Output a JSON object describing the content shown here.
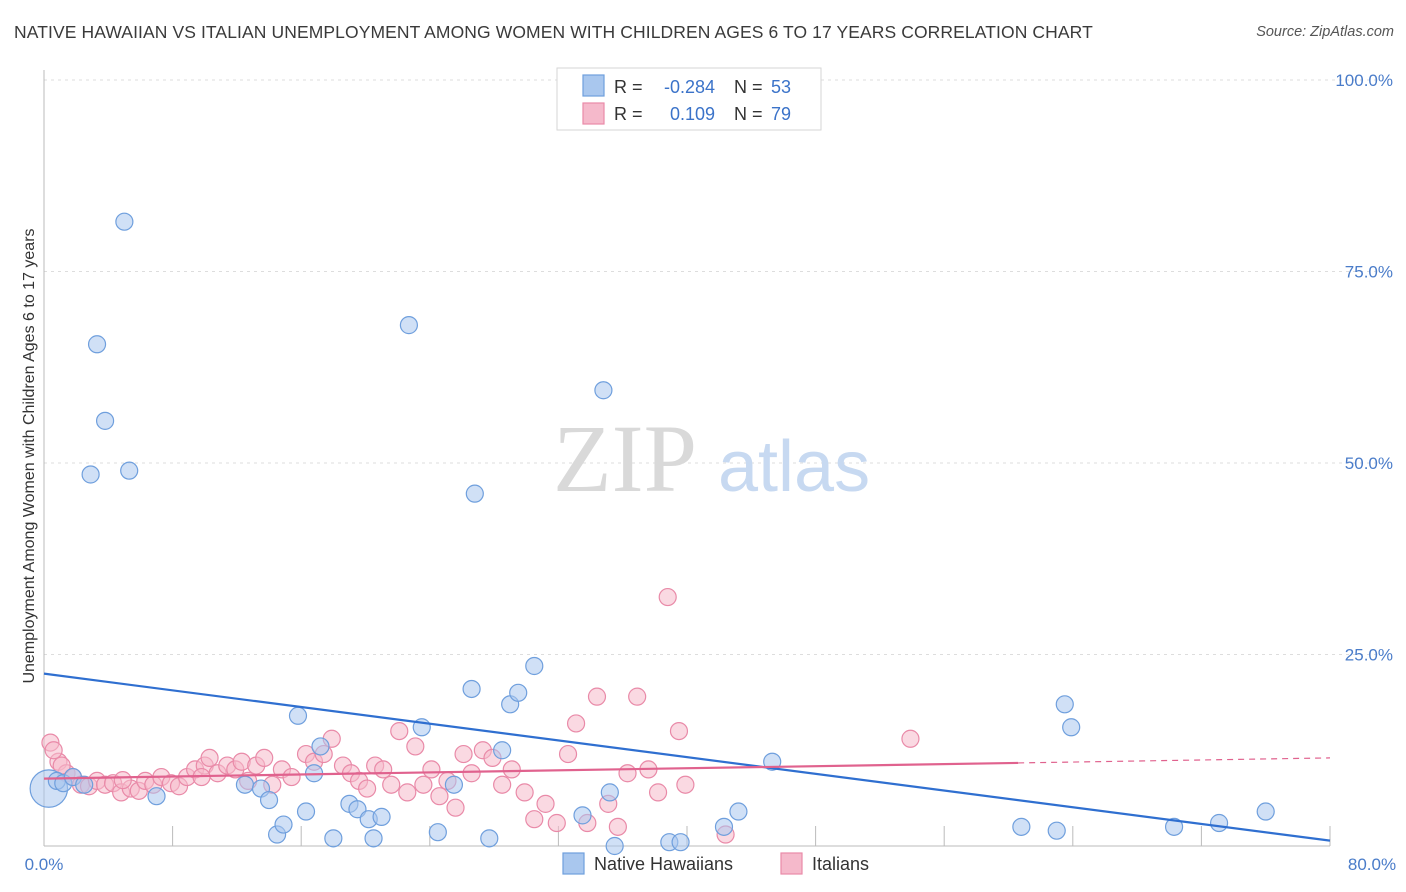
{
  "header": {
    "title": "NATIVE HAWAIIAN VS ITALIAN UNEMPLOYMENT AMONG WOMEN WITH CHILDREN AGES 6 TO 17 YEARS CORRELATION CHART",
    "source": "Source: ZipAtlas.com"
  },
  "watermark": {
    "zip": "ZIP",
    "atlas": "atlas"
  },
  "colors": {
    "blue_fill": "#a9c7ee",
    "blue_stroke": "#6f9fdd",
    "blue_line": "#2f6fd0",
    "pink_fill": "#f5b9cb",
    "pink_stroke": "#e98aa8",
    "pink_line": "#e0628e",
    "grid": "#dddddd",
    "tick_text": "#4a7cc9"
  },
  "legend": {
    "rows": [
      {
        "r_label": "R =",
        "r_value": "-0.284",
        "n_label": "N =",
        "n_value": "53"
      },
      {
        "r_label": "R =",
        "r_value": "0.109",
        "n_label": "N =",
        "n_value": "79"
      }
    ]
  },
  "chart_data": {
    "type": "scatter",
    "title": "NATIVE HAWAIIAN VS ITALIAN UNEMPLOYMENT AMONG WOMEN WITH CHILDREN AGES 6 TO 17 YEARS CORRELATION CHART",
    "xlabel": "",
    "ylabel": "Unemployment Among Women with Children Ages 6 to 17 years",
    "xlim": [
      0,
      80
    ],
    "ylim": [
      0,
      100
    ],
    "x_tick_labels": [
      "0.0%",
      "80.0%"
    ],
    "y_ticks": [
      25,
      50,
      75,
      100
    ],
    "y_tick_labels": [
      "25.0%",
      "50.0%",
      "75.0%",
      "100.0%"
    ],
    "legend_position": "bottom",
    "series": [
      {
        "name": "Native Hawaiians",
        "r": -0.284,
        "n": 53,
        "trend": {
          "x": [
            0,
            80
          ],
          "y": [
            22.5,
            0.7
          ],
          "dashed_from": null
        },
        "points": [
          {
            "x": 0.3,
            "y": 7.5,
            "size": 2.2
          },
          {
            "x": 0.8,
            "y": 8.5
          },
          {
            "x": 1.2,
            "y": 8.2
          },
          {
            "x": 1.8,
            "y": 9.0
          },
          {
            "x": 2.5,
            "y": 8.0
          },
          {
            "x": 2.9,
            "y": 48.5
          },
          {
            "x": 3.3,
            "y": 65.5
          },
          {
            "x": 3.8,
            "y": 55.5
          },
          {
            "x": 5.0,
            "y": 81.5
          },
          {
            "x": 5.3,
            "y": 49.0
          },
          {
            "x": 7.0,
            "y": 6.5
          },
          {
            "x": 12.5,
            "y": 8.0
          },
          {
            "x": 13.5,
            "y": 7.5
          },
          {
            "x": 14.0,
            "y": 6.0
          },
          {
            "x": 14.5,
            "y": 1.5
          },
          {
            "x": 14.9,
            "y": 2.8
          },
          {
            "x": 15.8,
            "y": 17.0
          },
          {
            "x": 16.3,
            "y": 4.5
          },
          {
            "x": 16.8,
            "y": 9.5
          },
          {
            "x": 17.2,
            "y": 13.0
          },
          {
            "x": 18.0,
            "y": 1.0
          },
          {
            "x": 19.0,
            "y": 5.5
          },
          {
            "x": 19.5,
            "y": 4.8
          },
          {
            "x": 20.2,
            "y": 3.5
          },
          {
            "x": 20.5,
            "y": 1.0
          },
          {
            "x": 21.0,
            "y": 3.8
          },
          {
            "x": 22.7,
            "y": 68.0
          },
          {
            "x": 23.5,
            "y": 15.5
          },
          {
            "x": 24.5,
            "y": 1.8
          },
          {
            "x": 25.5,
            "y": 8.0
          },
          {
            "x": 26.8,
            "y": 46.0
          },
          {
            "x": 27.7,
            "y": 1.0
          },
          {
            "x": 28.5,
            "y": 12.5
          },
          {
            "x": 29.0,
            "y": 18.5
          },
          {
            "x": 29.5,
            "y": 20.0
          },
          {
            "x": 30.5,
            "y": 23.5
          },
          {
            "x": 26.6,
            "y": 20.5
          },
          {
            "x": 33.5,
            "y": 4.0
          },
          {
            "x": 34.8,
            "y": 59.5
          },
          {
            "x": 35.2,
            "y": 7.0
          },
          {
            "x": 35.5,
            "y": 0.0
          },
          {
            "x": 38.9,
            "y": 0.5
          },
          {
            "x": 39.6,
            "y": 0.5
          },
          {
            "x": 42.3,
            "y": 2.5
          },
          {
            "x": 43.2,
            "y": 4.5
          },
          {
            "x": 45.3,
            "y": 11.0
          },
          {
            "x": 60.8,
            "y": 2.5
          },
          {
            "x": 63.0,
            "y": 2.0
          },
          {
            "x": 63.5,
            "y": 18.5
          },
          {
            "x": 63.9,
            "y": 15.5
          },
          {
            "x": 70.3,
            "y": 2.5
          },
          {
            "x": 73.1,
            "y": 3.0
          },
          {
            "x": 76.0,
            "y": 4.5
          }
        ]
      },
      {
        "name": "Italians",
        "r": 0.109,
        "n": 79,
        "trend": {
          "x": [
            0,
            80
          ],
          "y": [
            8.8,
            11.5
          ],
          "dashed_from": 60.6
        },
        "points": [
          {
            "x": 0.4,
            "y": 13.5
          },
          {
            "x": 0.9,
            "y": 11.0
          },
          {
            "x": 1.4,
            "y": 9.5
          },
          {
            "x": 1.8,
            "y": 9.0
          },
          {
            "x": 2.3,
            "y": 8.0
          },
          {
            "x": 2.8,
            "y": 7.8
          },
          {
            "x": 3.3,
            "y": 8.5
          },
          {
            "x": 3.8,
            "y": 8.0
          },
          {
            "x": 4.3,
            "y": 8.2
          },
          {
            "x": 4.8,
            "y": 7.0
          },
          {
            "x": 5.4,
            "y": 7.5
          },
          {
            "x": 5.9,
            "y": 7.2
          },
          {
            "x": 6.3,
            "y": 8.5
          },
          {
            "x": 6.8,
            "y": 8.0
          },
          {
            "x": 7.3,
            "y": 9.0
          },
          {
            "x": 7.9,
            "y": 8.2
          },
          {
            "x": 8.4,
            "y": 7.8
          },
          {
            "x": 8.9,
            "y": 9.0
          },
          {
            "x": 9.4,
            "y": 10.0
          },
          {
            "x": 10.0,
            "y": 10.5
          },
          {
            "x": 10.3,
            "y": 11.5
          },
          {
            "x": 10.8,
            "y": 9.5
          },
          {
            "x": 11.4,
            "y": 10.5
          },
          {
            "x": 11.9,
            "y": 10.0
          },
          {
            "x": 12.3,
            "y": 11.0
          },
          {
            "x": 12.7,
            "y": 8.5
          },
          {
            "x": 13.2,
            "y": 10.5
          },
          {
            "x": 13.7,
            "y": 11.5
          },
          {
            "x": 14.2,
            "y": 8.0
          },
          {
            "x": 14.8,
            "y": 10.0
          },
          {
            "x": 15.4,
            "y": 9.0
          },
          {
            "x": 16.3,
            "y": 12.0
          },
          {
            "x": 16.8,
            "y": 11.0
          },
          {
            "x": 17.4,
            "y": 12.0
          },
          {
            "x": 17.9,
            "y": 14.0
          },
          {
            "x": 18.6,
            "y": 10.5
          },
          {
            "x": 19.1,
            "y": 9.5
          },
          {
            "x": 19.6,
            "y": 8.5
          },
          {
            "x": 20.1,
            "y": 7.5
          },
          {
            "x": 20.6,
            "y": 10.5
          },
          {
            "x": 21.1,
            "y": 10.0
          },
          {
            "x": 21.6,
            "y": 8.0
          },
          {
            "x": 22.1,
            "y": 15.0
          },
          {
            "x": 22.6,
            "y": 7.0
          },
          {
            "x": 23.1,
            "y": 13.0
          },
          {
            "x": 23.6,
            "y": 8.0
          },
          {
            "x": 24.1,
            "y": 10.0
          },
          {
            "x": 24.6,
            "y": 6.5
          },
          {
            "x": 25.1,
            "y": 8.5
          },
          {
            "x": 25.6,
            "y": 5.0
          },
          {
            "x": 26.1,
            "y": 12.0
          },
          {
            "x": 26.6,
            "y": 9.5
          },
          {
            "x": 27.3,
            "y": 12.5
          },
          {
            "x": 27.9,
            "y": 11.5
          },
          {
            "x": 28.5,
            "y": 8.0
          },
          {
            "x": 29.1,
            "y": 10.0
          },
          {
            "x": 29.9,
            "y": 7.0
          },
          {
            "x": 30.5,
            "y": 3.5
          },
          {
            "x": 31.2,
            "y": 5.5
          },
          {
            "x": 31.9,
            "y": 3.0
          },
          {
            "x": 32.6,
            "y": 12.0
          },
          {
            "x": 33.1,
            "y": 16.0
          },
          {
            "x": 33.8,
            "y": 3.0
          },
          {
            "x": 34.4,
            "y": 19.5
          },
          {
            "x": 35.1,
            "y": 5.5
          },
          {
            "x": 35.7,
            "y": 2.5
          },
          {
            "x": 36.3,
            "y": 9.5
          },
          {
            "x": 36.9,
            "y": 19.5
          },
          {
            "x": 37.6,
            "y": 10.0
          },
          {
            "x": 38.2,
            "y": 7.0
          },
          {
            "x": 38.8,
            "y": 32.5
          },
          {
            "x": 39.5,
            "y": 15.0
          },
          {
            "x": 39.9,
            "y": 8.0
          },
          {
            "x": 42.4,
            "y": 1.5
          },
          {
            "x": 53.9,
            "y": 14.0
          },
          {
            "x": 0.6,
            "y": 12.5
          },
          {
            "x": 1.1,
            "y": 10.5
          },
          {
            "x": 4.9,
            "y": 8.6
          },
          {
            "x": 9.8,
            "y": 9.0
          }
        ]
      }
    ]
  }
}
